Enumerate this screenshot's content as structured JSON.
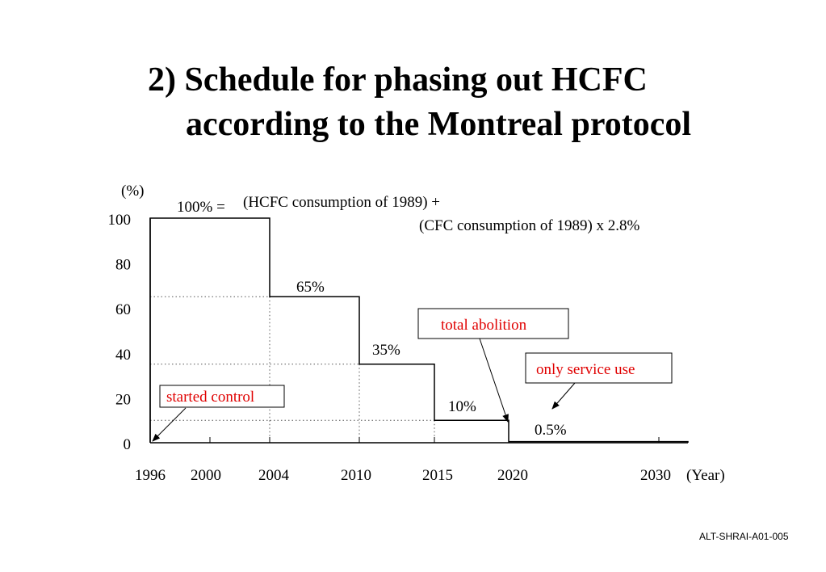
{
  "slide": {
    "title_line1": "2) Schedule for phasing out HCFC",
    "title_line2": "according to the Montreal protocol",
    "footer_code": "ALT-SHRAI-A01-005"
  },
  "colors": {
    "line": "#000000",
    "callout_text": "#e00000",
    "grid": "#555555"
  },
  "chart_data": {
    "type": "line",
    "subtype": "step",
    "x_tick_labels": [
      "1996",
      "2000",
      "2004",
      "2010",
      "2015",
      "2020",
      "2030"
    ],
    "x_unit_label": "(Year)",
    "y_unit_label": "(%)",
    "y_ticks": [
      0,
      20,
      40,
      60,
      80,
      100
    ],
    "ylim": [
      0,
      100
    ],
    "grid": "dotted reference lines at step levels",
    "series": [
      {
        "points": [
          {
            "x": "1996",
            "y": 100
          },
          {
            "x": "2004",
            "y": 65
          },
          {
            "x": "2010",
            "y": 35
          },
          {
            "x": "2015",
            "y": 10
          },
          {
            "x": "2020",
            "y": 0.5
          },
          {
            "x": "2030",
            "y": 0
          }
        ]
      }
    ],
    "data_labels": [
      {
        "x": "2004",
        "text": "65%"
      },
      {
        "x": "2010",
        "text": "35%"
      },
      {
        "x": "2015",
        "text": "10%"
      },
      {
        "x": "2020",
        "text": "0.5%"
      }
    ],
    "definition": {
      "prefix": "100% =",
      "line1": "(HCFC consumption of 1989) +",
      "line2": "(CFC consumption of 1989) x 2.8%"
    },
    "callouts": [
      {
        "text": "started control",
        "points_to": "1996"
      },
      {
        "text": "total abolition",
        "points_to": "2020"
      },
      {
        "text": "only service use",
        "points_to": "2020-2030"
      }
    ]
  }
}
